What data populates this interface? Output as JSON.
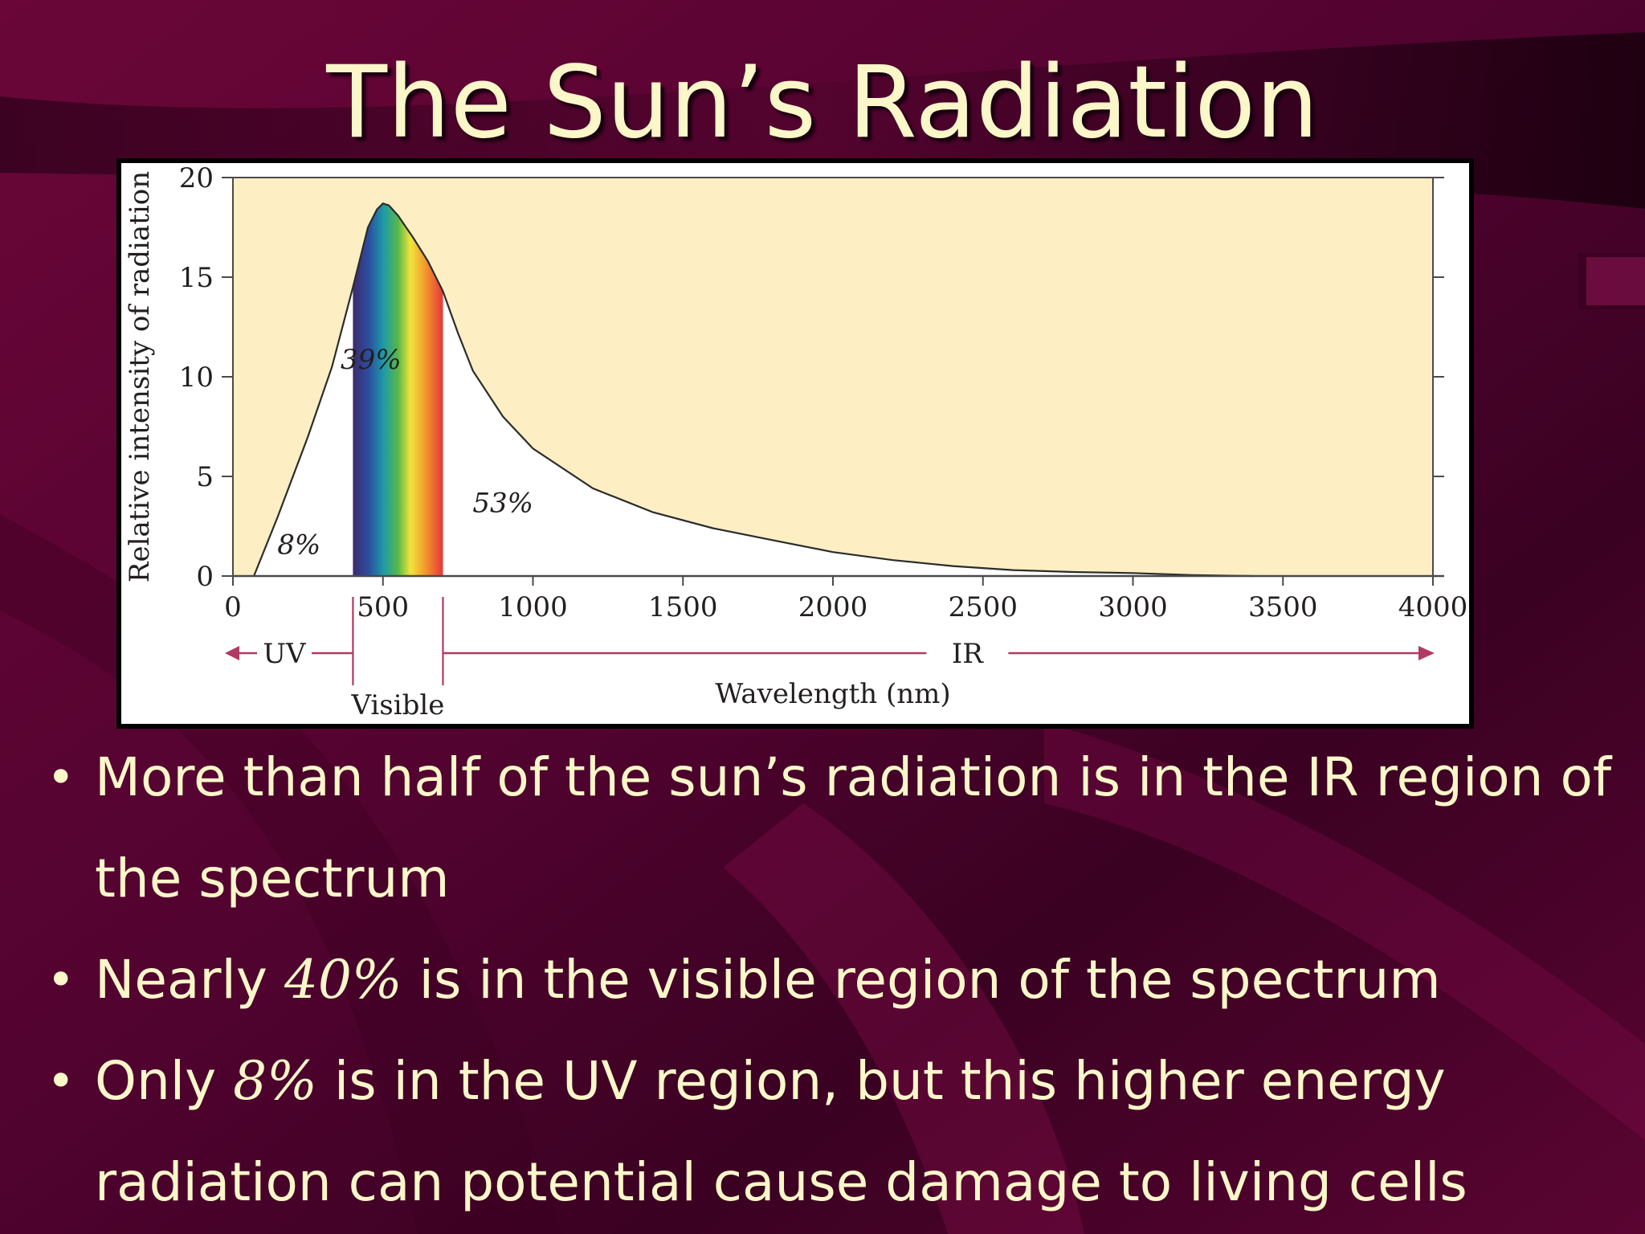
{
  "slide": {
    "title": "The Sun’s Radiation",
    "colors": {
      "background": "#5e0432",
      "text": "#fcf7c9",
      "plot_fill": "#fdefc3",
      "arrow": "#b03a64"
    }
  },
  "chart_data": {
    "type": "area",
    "xlabel": "Wavelength (nm)",
    "ylabel": "Relative intensity of radiation",
    "xlim": [
      0,
      4000
    ],
    "ylim": [
      0,
      20
    ],
    "xticks": [
      0,
      500,
      1000,
      1500,
      2000,
      2500,
      3000,
      3500,
      4000
    ],
    "yticks": [
      0,
      5,
      10,
      15,
      20
    ],
    "grid": false,
    "series": [
      {
        "x": [
          70,
          150,
          250,
          330,
          400,
          450,
          480,
          500,
          520,
          550,
          600,
          650,
          700,
          750,
          800,
          900,
          1000,
          1200,
          1400,
          1600,
          1800,
          2000,
          2200,
          2400,
          2600,
          2800,
          3000,
          3200,
          3400
        ],
        "values": [
          0,
          3,
          7,
          10.5,
          14.5,
          17.5,
          18.4,
          18.7,
          18.6,
          18.1,
          17.0,
          15.8,
          14.3,
          12.2,
          10.3,
          8.0,
          6.4,
          4.4,
          3.2,
          2.4,
          1.8,
          1.2,
          0.8,
          0.5,
          0.3,
          0.2,
          0.15,
          0.05,
          0
        ]
      }
    ],
    "regions": [
      {
        "label": "UV",
        "percent": "8%",
        "from": 0,
        "to": 400
      },
      {
        "label": "Visible",
        "percent": "39%",
        "from": 400,
        "to": 700
      },
      {
        "label": "IR",
        "percent": "53%",
        "from": 700,
        "to": 4000
      }
    ]
  },
  "bullets": [
    {
      "text": "More than half of the sun’s radiation is in the IR region of the spectrum"
    },
    {
      "before": "Nearly",
      "value": "40%",
      "after": "is in the visible region of the spectrum"
    },
    {
      "before": "Only",
      "value": "8%",
      "after": "is in the UV region, but this higher energy radiation can potential cause damage to living cells"
    }
  ]
}
